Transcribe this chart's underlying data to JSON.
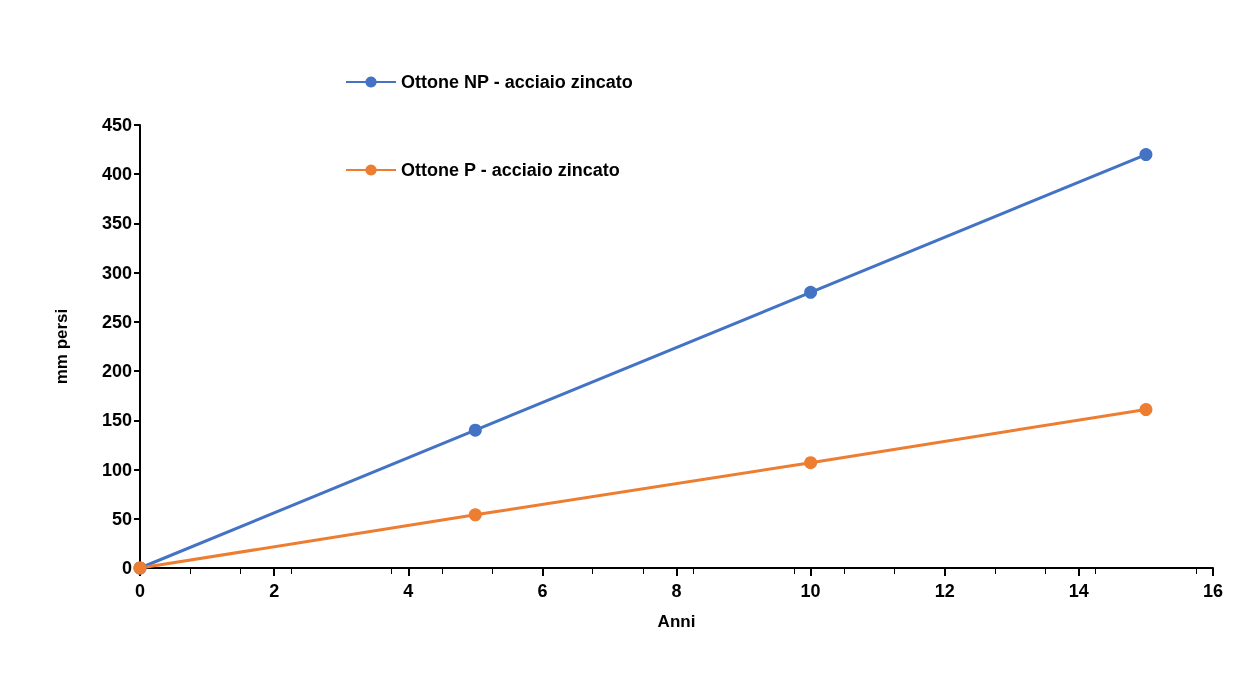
{
  "chart_data": {
    "type": "line",
    "xlabel": "Anni",
    "ylabel": "mm persi",
    "x": [
      0,
      5,
      10,
      15
    ],
    "series": [
      {
        "name": "Ottone NP - acciaio zincato",
        "color": "#4472c4",
        "values": [
          0,
          140,
          280,
          420
        ]
      },
      {
        "name": "Ottone P - acciaio zincato",
        "color": "#ed7d31",
        "values": [
          0,
          54,
          107,
          161
        ]
      }
    ],
    "xlim": [
      0,
      16
    ],
    "xticks": [
      0,
      2,
      4,
      6,
      8,
      10,
      12,
      14,
      16
    ],
    "ylim": [
      0,
      450
    ],
    "yticks": [
      0,
      50,
      100,
      150,
      200,
      250,
      300,
      350,
      400,
      450
    ],
    "grid": false,
    "legend": "top left",
    "marker": "circle",
    "line_style": "solid"
  }
}
